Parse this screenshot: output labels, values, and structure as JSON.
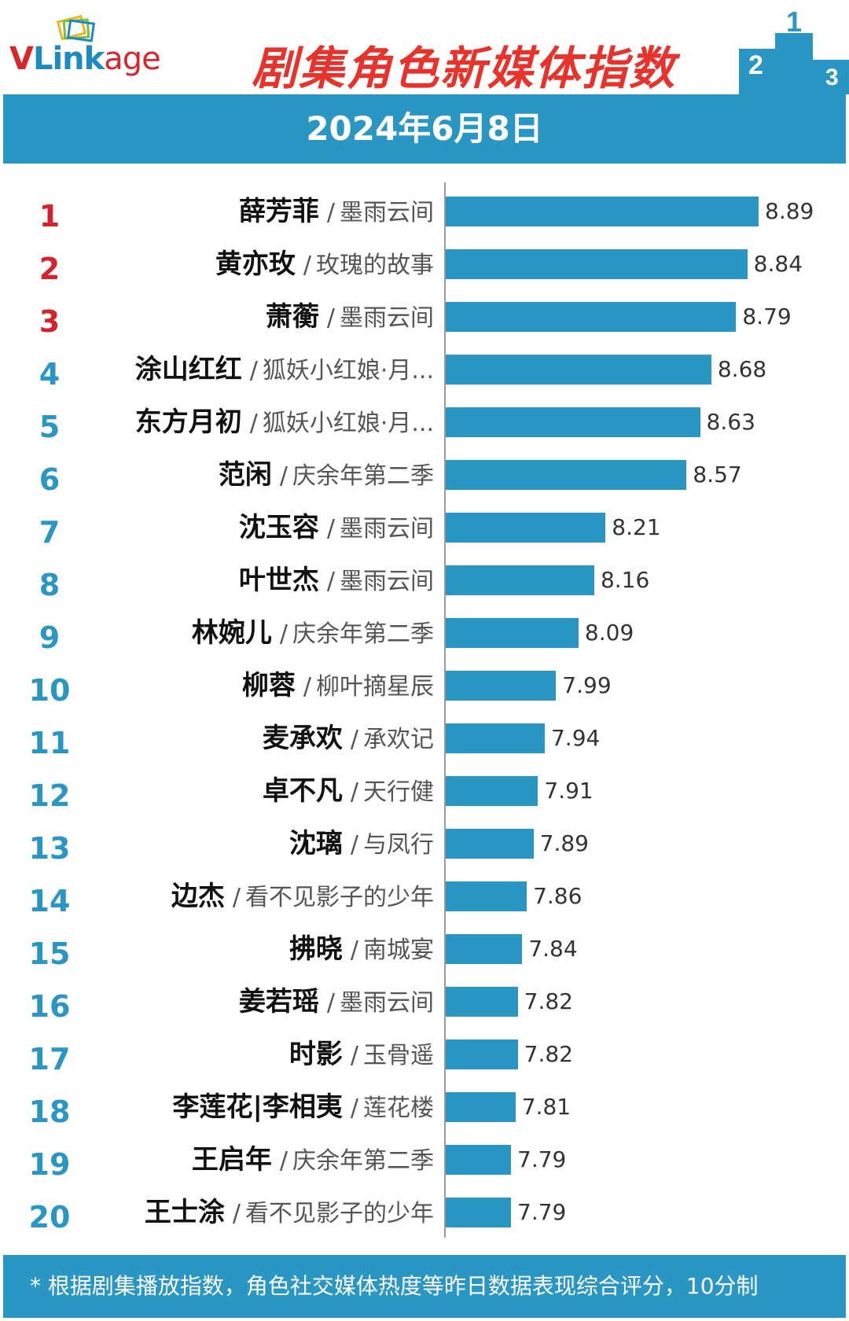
{
  "header": {
    "logo_v": "V",
    "logo_link": "Link",
    "logo_age": "age",
    "title": "剧集角色新媒体指数",
    "podium": [
      "2",
      "1",
      "3"
    ]
  },
  "date": "2024年6月8日",
  "colors": {
    "bar": "#2a96c4",
    "top_rank": "#d4232b",
    "rank": "#2a96c4",
    "title": "#e8332c"
  },
  "chart_data": {
    "type": "bar",
    "orientation": "horizontal",
    "xlim": [
      7.5,
      8.89
    ],
    "rows": [
      {
        "rank": "1",
        "name": "薛芳菲",
        "show": "墨雨云间",
        "value": 8.89,
        "value_label": "8.89"
      },
      {
        "rank": "2",
        "name": "黄亦玫",
        "show": "玫瑰的故事",
        "value": 8.84,
        "value_label": "8.84"
      },
      {
        "rank": "3",
        "name": "萧蘅",
        "show": "墨雨云间",
        "value": 8.79,
        "value_label": "8.79"
      },
      {
        "rank": "4",
        "name": "涂山红红",
        "show": "狐妖小红娘·月...",
        "value": 8.68,
        "value_label": "8.68"
      },
      {
        "rank": "5",
        "name": "东方月初",
        "show": "狐妖小红娘·月...",
        "value": 8.63,
        "value_label": "8.63"
      },
      {
        "rank": "6",
        "name": "范闲",
        "show": "庆余年第二季",
        "value": 8.57,
        "value_label": "8.57"
      },
      {
        "rank": "7",
        "name": "沈玉容",
        "show": "墨雨云间",
        "value": 8.21,
        "value_label": "8.21"
      },
      {
        "rank": "8",
        "name": "叶世杰",
        "show": "墨雨云间",
        "value": 8.16,
        "value_label": "8.16"
      },
      {
        "rank": "9",
        "name": "林婉儿",
        "show": "庆余年第二季",
        "value": 8.09,
        "value_label": "8.09"
      },
      {
        "rank": "10",
        "name": "柳蓉",
        "show": "柳叶摘星辰",
        "value": 7.99,
        "value_label": "7.99"
      },
      {
        "rank": "11",
        "name": "麦承欢",
        "show": "承欢记",
        "value": 7.94,
        "value_label": "7.94"
      },
      {
        "rank": "12",
        "name": "卓不凡",
        "show": "天行健",
        "value": 7.91,
        "value_label": "7.91"
      },
      {
        "rank": "13",
        "name": "沈璃",
        "show": "与凤行",
        "value": 7.89,
        "value_label": "7.89"
      },
      {
        "rank": "14",
        "name": "边杰",
        "show": "看不见影子的少年",
        "value": 7.86,
        "value_label": "7.86"
      },
      {
        "rank": "15",
        "name": "拂晓",
        "show": "南城宴",
        "value": 7.84,
        "value_label": "7.84"
      },
      {
        "rank": "16",
        "name": "姜若瑶",
        "show": "墨雨云间",
        "value": 7.82,
        "value_label": "7.82"
      },
      {
        "rank": "17",
        "name": "时影",
        "show": "玉骨遥",
        "value": 7.82,
        "value_label": "7.82"
      },
      {
        "rank": "18",
        "name": "李莲花|李相夷",
        "show": "莲花楼",
        "value": 7.81,
        "value_label": "7.81"
      },
      {
        "rank": "19",
        "name": "王启年",
        "show": "庆余年第二季",
        "value": 7.79,
        "value_label": "7.79"
      },
      {
        "rank": "20",
        "name": "王士涂",
        "show": "看不见影子的少年",
        "value": 7.79,
        "value_label": "7.79"
      }
    ]
  },
  "footer": "* 根据剧集播放指数，角色社交媒体热度等昨日数据表现综合评分，10分制"
}
